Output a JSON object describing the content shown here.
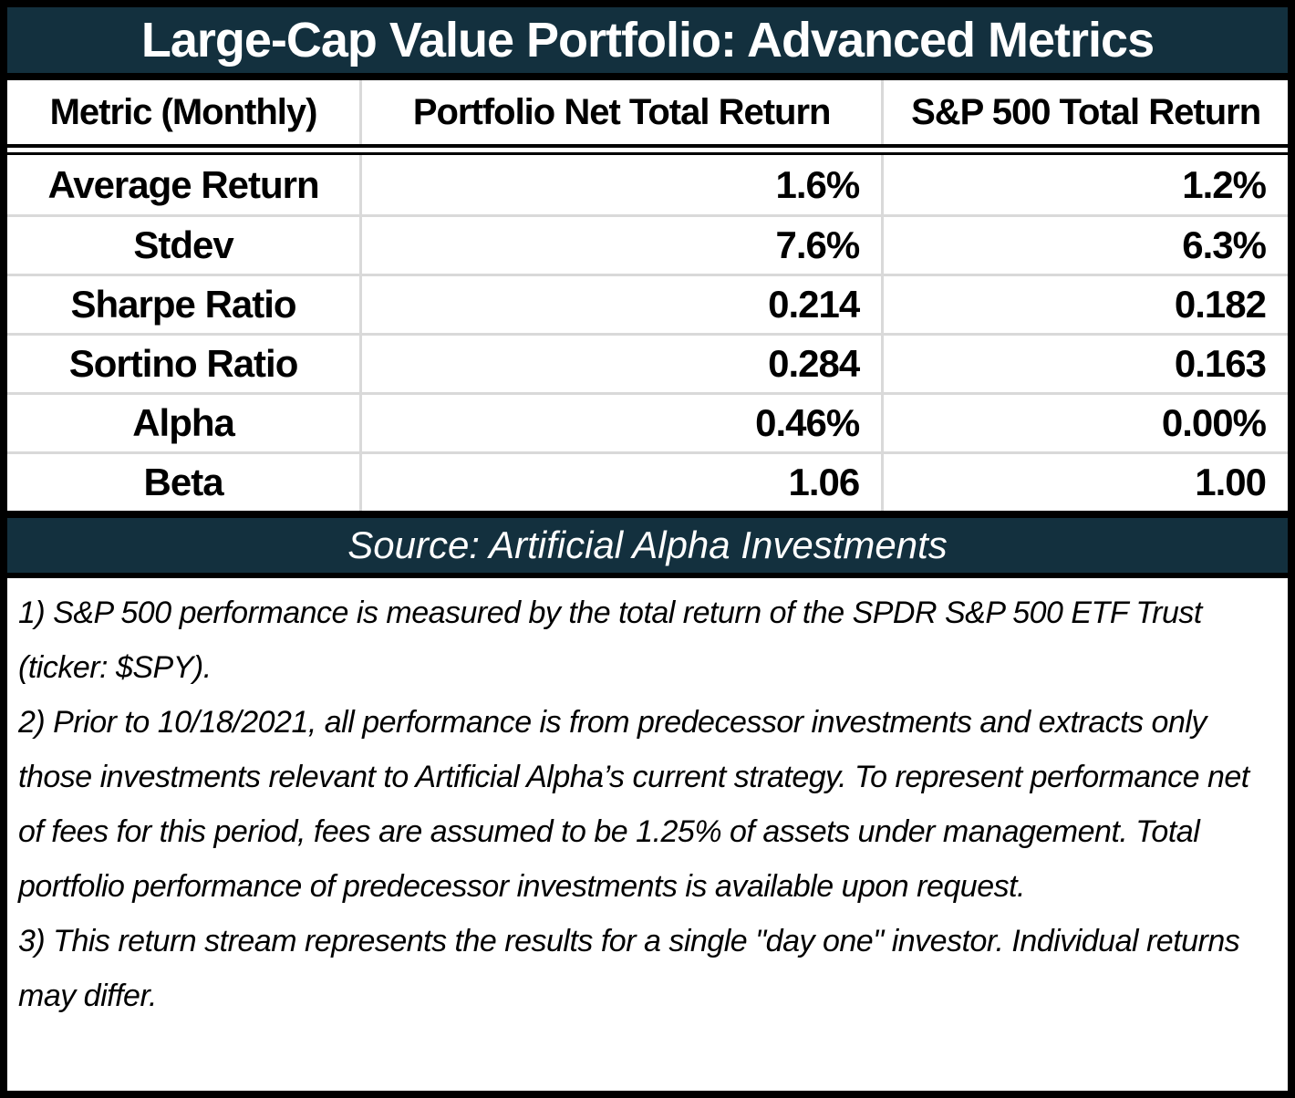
{
  "title": "Large-Cap Value Portfolio: Advanced Metrics",
  "table": {
    "headers": [
      "Metric (Monthly)",
      "Portfolio Net Total Return",
      "S&P 500 Total Return"
    ],
    "rows": [
      {
        "metric": "Average Return",
        "portfolio": "1.6%",
        "sp500": "1.2%"
      },
      {
        "metric": "Stdev",
        "portfolio": "7.6%",
        "sp500": "6.3%"
      },
      {
        "metric": "Sharpe Ratio",
        "portfolio": "0.214",
        "sp500": "0.182"
      },
      {
        "metric": "Sortino Ratio",
        "portfolio": "0.284",
        "sp500": "0.163"
      },
      {
        "metric": "Alpha",
        "portfolio": "0.46%",
        "sp500": "0.00%"
      },
      {
        "metric": "Beta",
        "portfolio": "1.06",
        "sp500": "1.00"
      }
    ]
  },
  "source": "Source: Artificial Alpha Investments",
  "footnotes": [
    "1) S&P 500 performance is measured by the total return of the SPDR S&P 500 ETF Trust (ticker: $SPY).",
    "2) Prior to 10/18/2021, all performance is from predecessor investments and extracts only those investments relevant to Artificial Alpha’s current strategy. To represent performance net of fees for this period, fees are assumed to be 1.25% of assets under management. Total portfolio performance of predecessor investments is available upon request.",
    "3) This return stream represents the results for a single \"day one\" investor. Individual returns may differ."
  ],
  "colors": {
    "banner_bg": "#13303E",
    "banner_text": "#FFFFFF",
    "grid_line": "#D9D9D9",
    "frame_border": "#000000",
    "body_text": "#000000"
  },
  "chart_data": {
    "type": "table",
    "title": "Large-Cap Value Portfolio: Advanced Metrics",
    "columns": [
      "Metric (Monthly)",
      "Portfolio Net Total Return",
      "S&P 500 Total Return"
    ],
    "rows": [
      [
        "Average Return",
        "1.6%",
        "1.2%"
      ],
      [
        "Stdev",
        "7.6%",
        "6.3%"
      ],
      [
        "Sharpe Ratio",
        "0.214",
        "0.182"
      ],
      [
        "Sortino Ratio",
        "0.284",
        "0.163"
      ],
      [
        "Alpha",
        "0.46%",
        "0.00%"
      ],
      [
        "Beta",
        "1.06",
        "1.00"
      ]
    ],
    "source": "Source: Artificial Alpha Investments",
    "notes_count": 3
  }
}
